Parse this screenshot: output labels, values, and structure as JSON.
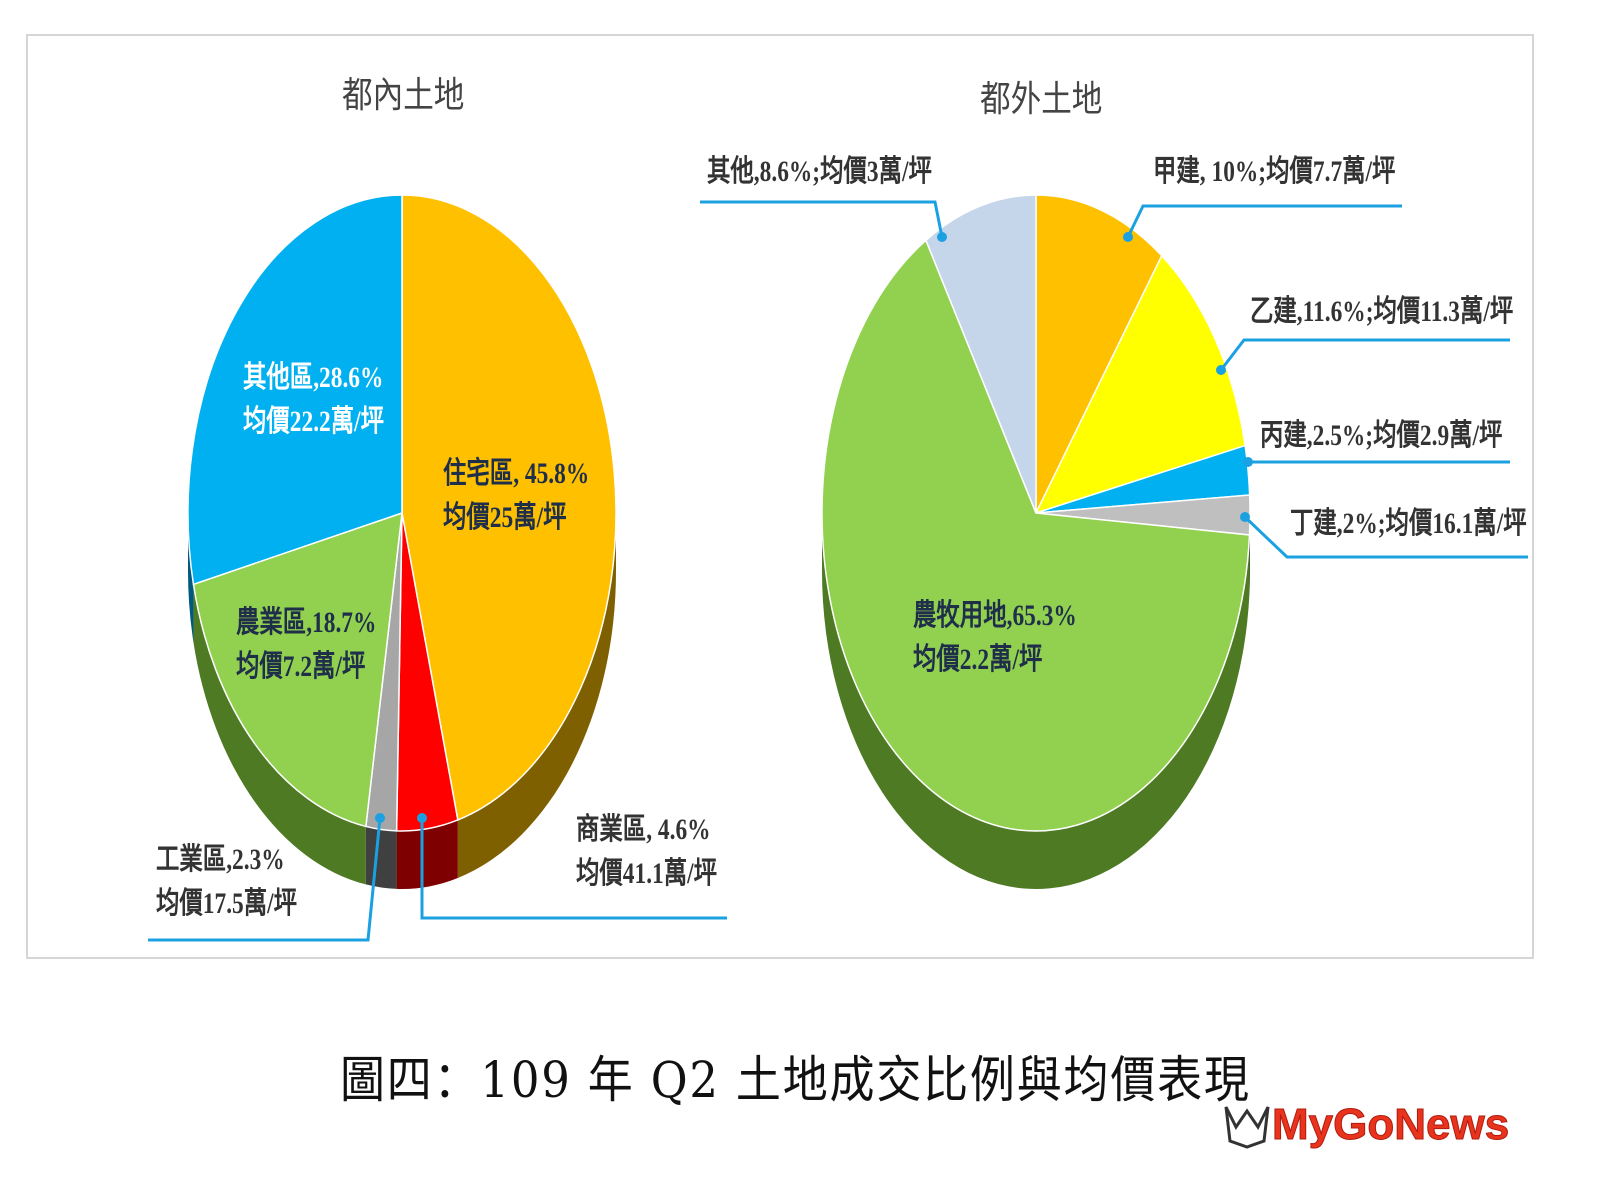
{
  "chart_data": [
    {
      "type": "pie",
      "title": "都內土地",
      "start": "12 o'clock",
      "direction": "clockwise",
      "style": "3d",
      "slices": [
        {
          "name": "住宅區",
          "value": 45.8,
          "price": "25",
          "label1": "住宅區, 45.8%",
          "label2": "均價25萬/坪",
          "color": "#FFC000",
          "side": "#7F6000"
        },
        {
          "name": "商業區",
          "value": 4.6,
          "price": "41.1",
          "label1": "商業區, 4.6%",
          "label2": "均價41.1萬/坪",
          "color": "#FF0000",
          "side": "#7F0000"
        },
        {
          "name": "工業區",
          "value": 2.3,
          "price": "17.5",
          "label1": "工業區,2.3%",
          "label2": "均價17.5萬/坪",
          "color": "#A6A6A6",
          "side": "#404040"
        },
        {
          "name": "農業區",
          "value": 18.7,
          "price": "7.2",
          "label1": "農業區,18.7%",
          "label2": "均價7.2萬/坪",
          "color": "#92D050",
          "side": "#4E7A24"
        },
        {
          "name": "其他區",
          "value": 28.6,
          "price": "22.2",
          "label1": "其他區,28.6%",
          "label2": "均價22.2萬/坪",
          "color": "#00B0F0",
          "side": "#005A80"
        }
      ]
    },
    {
      "type": "pie",
      "title": "都外土地",
      "start": "12 o'clock",
      "direction": "clockwise",
      "style": "3d",
      "slices": [
        {
          "name": "甲建",
          "value": 10,
          "price": "7.7",
          "label1": "甲建, 10%;均價7.7萬/坪",
          "color": "#FFC000",
          "side": "#7F6000"
        },
        {
          "name": "乙建",
          "value": 11.6,
          "price": "11.3",
          "label1": "乙建,11.6%;均價11.3萬/坪",
          "color": "#FFFF00",
          "side": "#7F7F00"
        },
        {
          "name": "丙建",
          "value": 2.5,
          "price": "2.9",
          "label1": "丙建,2.5%;均價2.9萬/坪",
          "color": "#00B0F0",
          "side": "#005A80"
        },
        {
          "name": "丁建",
          "value": 2,
          "price": "16.1",
          "label1": "丁建,2%;均價16.1萬/坪",
          "color": "#BFBFBF",
          "side": "#404040"
        },
        {
          "name": "農牧用地",
          "value": 65.3,
          "price": "2.2",
          "label1": "農牧用地,65.3%",
          "label2": "均價2.2萬/坪",
          "color": "#92D050",
          "side": "#4E7A24"
        },
        {
          "name": "其他",
          "value": 8.6,
          "price": "3",
          "label1": "其他,8.6%;均價3萬/坪",
          "color": "#C5D5EA",
          "side": "#6A7A8F"
        }
      ]
    }
  ],
  "caption": "圖四：109 年 Q2 土地成交比例與均價表現",
  "logo": "MyGoNews",
  "colors": {
    "leader": "#1BA1E2",
    "frame": "#d6d6d6"
  }
}
